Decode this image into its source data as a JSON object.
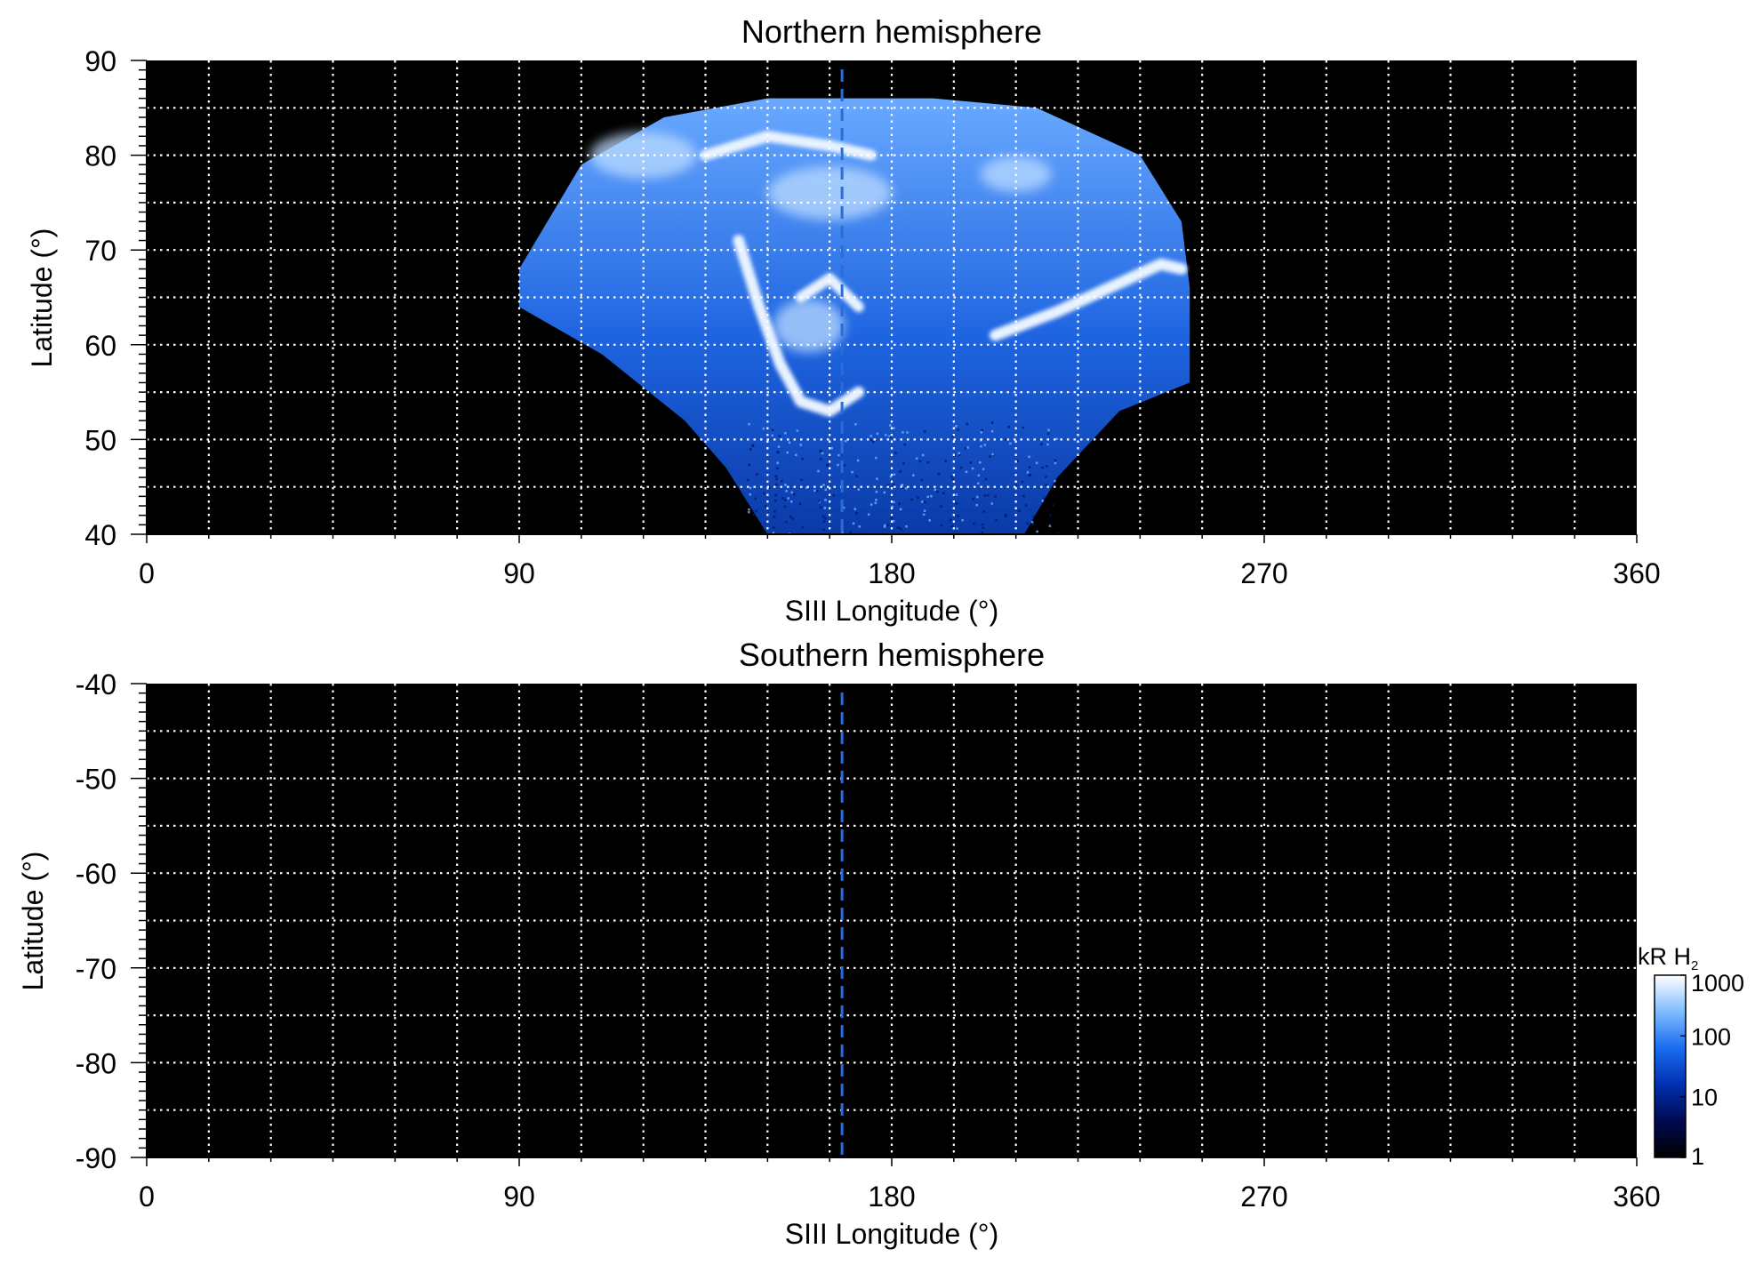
{
  "chart_data": [
    {
      "type": "heatmap",
      "title": "Northern hemisphere",
      "xlabel": "SIII Longitude (°)",
      "ylabel": "Latitude (°)",
      "xlim": [
        0,
        360
      ],
      "ylim": [
        40,
        90
      ],
      "xticks": [
        0,
        90,
        180,
        270,
        360
      ],
      "xtick_labels": [
        "0",
        "90",
        "180",
        "270",
        "360"
      ],
      "yticks": [
        40,
        50,
        60,
        70,
        80,
        90
      ],
      "ytick_labels": [
        "40",
        "50",
        "60",
        "70",
        "80",
        "90"
      ],
      "grid": true,
      "grid_lon_step": 15,
      "grid_lat_step": 5,
      "color_scale": "log",
      "background": "#000000",
      "reference_meridian_lon": 168,
      "reference_meridian_color": "#2b6cd6",
      "emission_region": {
        "upper_edge": [
          [
            90,
            68
          ],
          [
            105,
            79
          ],
          [
            125,
            84
          ],
          [
            150,
            86
          ],
          [
            168,
            86
          ],
          [
            190,
            86
          ],
          [
            215,
            85
          ],
          [
            240,
            80
          ],
          [
            250,
            73
          ],
          [
            252,
            66
          ]
        ],
        "lower_edge": [
          [
            90,
            64
          ],
          [
            110,
            59
          ],
          [
            130,
            52
          ],
          [
            140,
            47
          ],
          [
            150,
            40
          ],
          [
            212,
            40
          ],
          [
            220,
            46
          ],
          [
            235,
            53
          ],
          [
            252,
            56
          ]
        ]
      },
      "emission_features": [
        {
          "lon": [
            143,
            148,
            153,
            158,
            165,
            172
          ],
          "lat": [
            71,
            64,
            58,
            54,
            53,
            55
          ],
          "intensity_kR": 800
        },
        {
          "lon": [
            205,
            220,
            235,
            245,
            250
          ],
          "lat": [
            61,
            63.5,
            66.5,
            68.5,
            68
          ],
          "intensity_kR": 900
        },
        {
          "lon": [
            135,
            150,
            165,
            175
          ],
          "lat": [
            80,
            82,
            81,
            80
          ],
          "intensity_kR": 600
        },
        {
          "lon": [
            158,
            165,
            172
          ],
          "lat": [
            65,
            67,
            64
          ],
          "intensity_kR": 500
        }
      ]
    },
    {
      "type": "heatmap",
      "title": "Southern hemisphere",
      "xlabel": "SIII Longitude (°)",
      "ylabel": "Latitude (°)",
      "xlim": [
        0,
        360
      ],
      "ylim": [
        -90,
        -40
      ],
      "xticks": [
        0,
        90,
        180,
        270,
        360
      ],
      "xtick_labels": [
        "0",
        "90",
        "180",
        "270",
        "360"
      ],
      "yticks": [
        -40,
        -50,
        -60,
        -70,
        -80,
        -90
      ],
      "ytick_labels": [
        "-40",
        "-50",
        "-60",
        "-70",
        "-80",
        "-90"
      ],
      "grid": true,
      "grid_lon_step": 15,
      "grid_lat_step": 5,
      "color_scale": "log",
      "background": "#000000",
      "reference_meridian_lon": 168,
      "reference_meridian_color": "#2b6cd6",
      "emission_region": null
    }
  ],
  "colorbar": {
    "label_main": "kR H",
    "label_sub": "2",
    "scale": "log",
    "range": [
      1,
      1000
    ],
    "ticks": [
      "1",
      "10",
      "100",
      "1000"
    ],
    "colors": [
      "#000000",
      "#000a50",
      "#0030b0",
      "#1a6cf0",
      "#7fbcff",
      "#ffffff"
    ]
  }
}
